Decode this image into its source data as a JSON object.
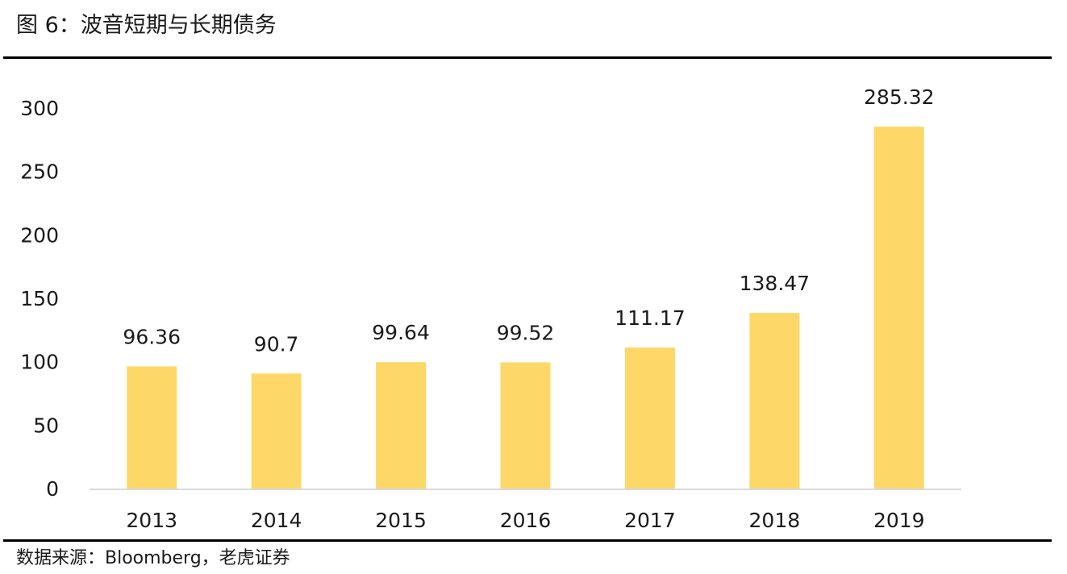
{
  "figure": {
    "title": "图 6：波音短期与长期债务",
    "source": "数据来源：Bloomberg，老虎证券"
  },
  "colors": {
    "bar": "#FDD868",
    "axis": "#D9D9D9",
    "rule": "#000000"
  },
  "chart_data": {
    "type": "bar",
    "title": "",
    "xlabel": "",
    "ylabel": "",
    "categories": [
      "2013",
      "2014",
      "2015",
      "2016",
      "2017",
      "2018",
      "2019"
    ],
    "values": [
      96.36,
      90.7,
      99.64,
      99.52,
      111.17,
      138.47,
      285.32
    ],
    "value_labels": [
      "96.36",
      "90.7",
      "99.64",
      "99.52",
      "111.17",
      "138.47",
      "285.32"
    ],
    "ylim": [
      0,
      300
    ],
    "yticks": [
      0,
      50,
      100,
      150,
      200,
      250,
      300
    ],
    "grid": false,
    "legend": "none"
  }
}
